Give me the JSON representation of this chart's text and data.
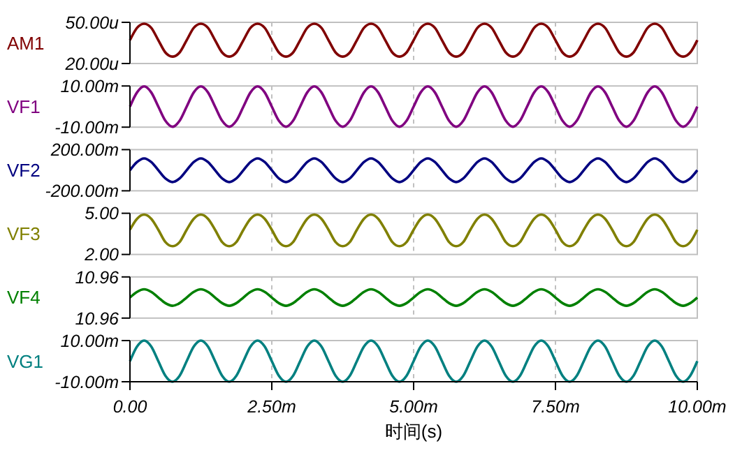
{
  "chart_data": [
    {
      "type": "line",
      "ylabel": "AM1",
      "x": [
        0,
        0.125,
        0.25,
        0.375,
        0.5,
        0.625,
        0.75,
        0.875,
        1,
        1.125,
        1.25,
        1.375,
        1.5,
        1.625,
        1.75,
        1.875,
        2,
        2.125,
        2.25,
        2.375,
        2.5,
        2.625,
        2.75,
        2.875,
        3,
        3.125,
        3.25,
        3.375,
        3.5,
        3.625,
        3.75,
        3.875,
        4,
        4.125,
        4.25,
        4.375,
        4.5,
        4.625,
        4.75,
        4.875,
        5,
        5.125,
        5.25,
        5.375,
        5.5,
        5.625,
        5.75,
        5.875,
        6,
        6.125,
        6.25,
        6.375,
        6.5,
        6.625,
        6.75,
        6.875,
        7,
        7.125,
        7.25,
        7.375,
        7.5,
        7.625,
        7.75,
        7.875,
        8,
        8.125,
        8.25,
        8.375,
        8.5,
        8.625,
        8.75,
        8.875,
        9,
        9.125,
        9.25,
        9.375,
        9.5,
        9.625,
        9.75,
        9.875,
        10
      ],
      "series": [
        {
          "color": "#800000",
          "values": [
            37,
            46,
            49,
            46,
            37,
            28,
            25,
            28,
            37,
            46,
            49,
            46,
            37,
            28,
            25,
            28,
            37,
            46,
            49,
            46,
            37,
            28,
            25,
            28,
            37,
            46,
            49,
            46,
            37,
            28,
            25,
            28,
            37,
            46,
            49,
            46,
            37,
            28,
            25,
            28,
            37,
            46,
            49,
            46,
            37,
            28,
            25,
            28,
            37,
            46,
            49,
            46,
            37,
            28,
            25,
            28,
            37,
            46,
            49,
            46,
            37,
            28,
            25,
            28,
            37,
            46,
            49,
            46,
            37,
            28,
            25,
            28,
            37,
            46,
            49,
            46,
            37,
            28,
            25,
            28,
            37
          ]
        }
      ],
      "xlim": [
        0,
        10
      ],
      "xticks": [
        0,
        2.5,
        5,
        7.5,
        10
      ],
      "ylim": [
        20,
        50
      ],
      "yticks": [
        {
          "value": 20,
          "label": "20.00u"
        },
        {
          "value": 50,
          "label": "50.00u"
        }
      ],
      "grid": "x",
      "tick_labels": "y"
    },
    {
      "type": "line",
      "ylabel": "VF1",
      "x": [
        0,
        0.125,
        0.25,
        0.375,
        0.5,
        0.625,
        0.75,
        0.875,
        1,
        1.125,
        1.25,
        1.375,
        1.5,
        1.625,
        1.75,
        1.875,
        2,
        2.125,
        2.25,
        2.375,
        2.5,
        2.625,
        2.75,
        2.875,
        3,
        3.125,
        3.25,
        3.375,
        3.5,
        3.625,
        3.75,
        3.875,
        4,
        4.125,
        4.25,
        4.375,
        4.5,
        4.625,
        4.75,
        4.875,
        5,
        5.125,
        5.25,
        5.375,
        5.5,
        5.625,
        5.75,
        5.875,
        6,
        6.125,
        6.25,
        6.375,
        6.5,
        6.625,
        6.75,
        6.875,
        7,
        7.125,
        7.25,
        7.375,
        7.5,
        7.625,
        7.75,
        7.875,
        8,
        8.125,
        8.25,
        8.375,
        8.5,
        8.625,
        8.75,
        8.875,
        9,
        9.125,
        9.25,
        9.375,
        9.5,
        9.625,
        9.75,
        9.875,
        10
      ],
      "series": [
        {
          "color": "#800080",
          "values": [
            0,
            6.9,
            9.8,
            6.9,
            0,
            -6.9,
            -9.8,
            -6.9,
            0,
            6.9,
            9.8,
            6.9,
            0,
            -6.9,
            -9.8,
            -6.9,
            0,
            6.9,
            9.8,
            6.9,
            0,
            -6.9,
            -9.8,
            -6.9,
            0,
            6.9,
            9.8,
            6.9,
            0,
            -6.9,
            -9.8,
            -6.9,
            0,
            6.9,
            9.8,
            6.9,
            0,
            -6.9,
            -9.8,
            -6.9,
            0,
            6.9,
            9.8,
            6.9,
            0,
            -6.9,
            -9.8,
            -6.9,
            0,
            6.9,
            9.8,
            6.9,
            0,
            -6.9,
            -9.8,
            -6.9,
            0,
            6.9,
            9.8,
            6.9,
            0,
            -6.9,
            -9.8,
            -6.9,
            0,
            6.9,
            9.8,
            6.9,
            0,
            -6.9,
            -9.8,
            -6.9,
            0,
            6.9,
            9.8,
            6.9,
            0,
            -6.9,
            -9.8,
            -6.9,
            0
          ]
        }
      ],
      "xlim": [
        0,
        10
      ],
      "xticks": [
        0,
        2.5,
        5,
        7.5,
        10
      ],
      "ylim": [
        -10,
        10
      ],
      "yticks": [
        {
          "value": -10,
          "label": "-10.00m"
        },
        {
          "value": 10,
          "label": "10.00m"
        }
      ],
      "grid": "x",
      "tick_labels": "y"
    },
    {
      "type": "line",
      "ylabel": "VF2",
      "x": [
        0,
        0.125,
        0.25,
        0.375,
        0.5,
        0.625,
        0.75,
        0.875,
        1,
        1.125,
        1.25,
        1.375,
        1.5,
        1.625,
        1.75,
        1.875,
        2,
        2.125,
        2.25,
        2.375,
        2.5,
        2.625,
        2.75,
        2.875,
        3,
        3.125,
        3.25,
        3.375,
        3.5,
        3.625,
        3.75,
        3.875,
        4,
        4.125,
        4.25,
        4.375,
        4.5,
        4.625,
        4.75,
        4.875,
        5,
        5.125,
        5.25,
        5.375,
        5.5,
        5.625,
        5.75,
        5.875,
        6,
        6.125,
        6.25,
        6.375,
        6.5,
        6.625,
        6.75,
        6.875,
        7,
        7.125,
        7.25,
        7.375,
        7.5,
        7.625,
        7.75,
        7.875,
        8,
        8.125,
        8.25,
        8.375,
        8.5,
        8.625,
        8.75,
        8.875,
        9,
        9.125,
        9.25,
        9.375,
        9.5,
        9.625,
        9.75,
        9.875,
        10
      ],
      "series": [
        {
          "color": "#000080",
          "values": [
            0,
            80,
            115,
            80,
            0,
            -80,
            -115,
            -80,
            0,
            80,
            115,
            80,
            0,
            -80,
            -115,
            -80,
            0,
            80,
            115,
            80,
            0,
            -80,
            -115,
            -80,
            0,
            80,
            115,
            80,
            0,
            -80,
            -115,
            -80,
            0,
            80,
            115,
            80,
            0,
            -80,
            -115,
            -80,
            0,
            80,
            115,
            80,
            0,
            -80,
            -115,
            -80,
            0,
            80,
            115,
            80,
            0,
            -80,
            -115,
            -80,
            0,
            80,
            115,
            80,
            0,
            -80,
            -115,
            -80,
            0,
            80,
            115,
            80,
            0,
            -80,
            -115,
            -80,
            0,
            80,
            115,
            80,
            0,
            -80,
            -115,
            -80,
            0
          ]
        }
      ],
      "xlim": [
        0,
        10
      ],
      "xticks": [
        0,
        2.5,
        5,
        7.5,
        10
      ],
      "ylim": [
        -200,
        200
      ],
      "yticks": [
        {
          "value": -200,
          "label": "-200.00m"
        },
        {
          "value": 200,
          "label": "200.00m"
        }
      ],
      "grid": "x",
      "tick_labels": "y"
    },
    {
      "type": "line",
      "ylabel": "VF3",
      "x": [
        0,
        0.125,
        0.25,
        0.375,
        0.5,
        0.625,
        0.75,
        0.875,
        1,
        1.125,
        1.25,
        1.375,
        1.5,
        1.625,
        1.75,
        1.875,
        2,
        2.125,
        2.25,
        2.375,
        2.5,
        2.625,
        2.75,
        2.875,
        3,
        3.125,
        3.25,
        3.375,
        3.5,
        3.625,
        3.75,
        3.875,
        4,
        4.125,
        4.25,
        4.375,
        4.5,
        4.625,
        4.75,
        4.875,
        5,
        5.125,
        5.25,
        5.375,
        5.5,
        5.625,
        5.75,
        5.875,
        6,
        6.125,
        6.25,
        6.375,
        6.5,
        6.625,
        6.75,
        6.875,
        7,
        7.125,
        7.25,
        7.375,
        7.5,
        7.625,
        7.75,
        7.875,
        8,
        8.125,
        8.25,
        8.375,
        8.5,
        8.625,
        8.75,
        8.875,
        9,
        9.125,
        9.25,
        9.375,
        9.5,
        9.625,
        9.75,
        9.875,
        10
      ],
      "series": [
        {
          "color": "#808000",
          "values": [
            3.8,
            4.6,
            4.9,
            4.6,
            3.8,
            2.9,
            2.6,
            2.9,
            3.8,
            4.6,
            4.9,
            4.6,
            3.8,
            2.9,
            2.6,
            2.9,
            3.8,
            4.6,
            4.9,
            4.6,
            3.8,
            2.9,
            2.6,
            2.9,
            3.8,
            4.6,
            4.9,
            4.6,
            3.8,
            2.9,
            2.6,
            2.9,
            3.8,
            4.6,
            4.9,
            4.6,
            3.8,
            2.9,
            2.6,
            2.9,
            3.8,
            4.6,
            4.9,
            4.6,
            3.8,
            2.9,
            2.6,
            2.9,
            3.8,
            4.6,
            4.9,
            4.6,
            3.8,
            2.9,
            2.6,
            2.9,
            3.8,
            4.6,
            4.9,
            4.6,
            3.8,
            2.9,
            2.6,
            2.9,
            3.8,
            4.6,
            4.9,
            4.6,
            3.8,
            2.9,
            2.6,
            2.9,
            3.8,
            4.6,
            4.9,
            4.6,
            3.8,
            2.9,
            2.6,
            2.9,
            3.8
          ]
        }
      ],
      "xlim": [
        0,
        10
      ],
      "xticks": [
        0,
        2.5,
        5,
        7.5,
        10
      ],
      "ylim": [
        2,
        5
      ],
      "yticks": [
        {
          "value": 2,
          "label": "2.00"
        },
        {
          "value": 5,
          "label": "5.00"
        }
      ],
      "grid": "x",
      "tick_labels": "y"
    },
    {
      "type": "line",
      "ylabel": "VF4",
      "x": [
        0,
        0.125,
        0.25,
        0.375,
        0.5,
        0.625,
        0.75,
        0.875,
        1,
        1.125,
        1.25,
        1.375,
        1.5,
        1.625,
        1.75,
        1.875,
        2,
        2.125,
        2.25,
        2.375,
        2.5,
        2.625,
        2.75,
        2.875,
        3,
        3.125,
        3.25,
        3.375,
        3.5,
        3.625,
        3.75,
        3.875,
        4,
        4.125,
        4.25,
        4.375,
        4.5,
        4.625,
        4.75,
        4.875,
        5,
        5.125,
        5.25,
        5.375,
        5.5,
        5.625,
        5.75,
        5.875,
        6,
        6.125,
        6.25,
        6.375,
        6.5,
        6.625,
        6.75,
        6.875,
        7,
        7.125,
        7.25,
        7.375,
        7.5,
        7.625,
        7.75,
        7.875,
        8,
        8.125,
        8.25,
        8.375,
        8.5,
        8.625,
        8.75,
        8.875,
        9,
        9.125,
        9.25,
        9.375,
        9.5,
        9.625,
        9.75,
        9.875,
        10
      ],
      "series": [
        {
          "color": "#008000",
          "values": [
            10.96,
            10.9611,
            10.9616,
            10.9611,
            10.96,
            10.9589,
            10.9584,
            10.9589,
            10.96,
            10.9611,
            10.9616,
            10.9611,
            10.96,
            10.9589,
            10.9584,
            10.9589,
            10.96,
            10.9611,
            10.9616,
            10.9611,
            10.96,
            10.9589,
            10.9584,
            10.9589,
            10.96,
            10.9611,
            10.9616,
            10.9611,
            10.96,
            10.9589,
            10.9584,
            10.9589,
            10.96,
            10.9611,
            10.9616,
            10.9611,
            10.96,
            10.9589,
            10.9584,
            10.9589,
            10.96,
            10.9611,
            10.9616,
            10.9611,
            10.96,
            10.9589,
            10.9584,
            10.9589,
            10.96,
            10.9611,
            10.9616,
            10.9611,
            10.96,
            10.9589,
            10.9584,
            10.9589,
            10.96,
            10.9611,
            10.9616,
            10.9611,
            10.96,
            10.9589,
            10.9584,
            10.9589,
            10.96,
            10.9611,
            10.9616,
            10.9611,
            10.96,
            10.9589,
            10.9584,
            10.9589,
            10.96,
            10.9611,
            10.9616,
            10.9611,
            10.96,
            10.9589,
            10.9584,
            10.9589,
            10.96
          ]
        }
      ],
      "xlim": [
        0,
        10
      ],
      "xticks": [
        0,
        2.5,
        5,
        7.5,
        10
      ],
      "ylim": [
        10.956,
        10.964
      ],
      "yticks": [
        {
          "value": 10.956,
          "label": "10.96"
        },
        {
          "value": 10.964,
          "label": "10.96"
        }
      ],
      "grid": "x",
      "tick_labels": "y"
    },
    {
      "type": "line",
      "ylabel": "VG1",
      "xlabel": "时间(s)",
      "x": [
        0,
        0.125,
        0.25,
        0.375,
        0.5,
        0.625,
        0.75,
        0.875,
        1,
        1.125,
        1.25,
        1.375,
        1.5,
        1.625,
        1.75,
        1.875,
        2,
        2.125,
        2.25,
        2.375,
        2.5,
        2.625,
        2.75,
        2.875,
        3,
        3.125,
        3.25,
        3.375,
        3.5,
        3.625,
        3.75,
        3.875,
        4,
        4.125,
        4.25,
        4.375,
        4.5,
        4.625,
        4.75,
        4.875,
        5,
        5.125,
        5.25,
        5.375,
        5.5,
        5.625,
        5.75,
        5.875,
        6,
        6.125,
        6.25,
        6.375,
        6.5,
        6.625,
        6.75,
        6.875,
        7,
        7.125,
        7.25,
        7.375,
        7.5,
        7.625,
        7.75,
        7.875,
        8,
        8.125,
        8.25,
        8.375,
        8.5,
        8.625,
        8.75,
        8.875,
        9,
        9.125,
        9.25,
        9.375,
        9.5,
        9.625,
        9.75,
        9.875,
        10
      ],
      "series": [
        {
          "color": "#008080",
          "values": [
            0,
            7.1,
            10,
            7.1,
            0,
            -7.1,
            -10,
            -7.1,
            0,
            7.1,
            10,
            7.1,
            0,
            -7.1,
            -10,
            -7.1,
            0,
            7.1,
            10,
            7.1,
            0,
            -7.1,
            -10,
            -7.1,
            0,
            7.1,
            10,
            7.1,
            0,
            -7.1,
            -10,
            -7.1,
            0,
            7.1,
            10,
            7.1,
            0,
            -7.1,
            -10,
            -7.1,
            0,
            7.1,
            10,
            7.1,
            0,
            -7.1,
            -10,
            -7.1,
            0,
            7.1,
            10,
            7.1,
            0,
            -7.1,
            -10,
            -7.1,
            0,
            7.1,
            10,
            7.1,
            0,
            -7.1,
            -10,
            -7.1,
            0,
            7.1,
            10,
            7.1,
            0,
            -7.1,
            -10,
            -7.1,
            0,
            7.1,
            10,
            7.1,
            0,
            -7.1,
            -10,
            -7.1,
            0
          ]
        }
      ],
      "xlim": [
        0,
        10
      ],
      "xticks": [
        {
          "value": 0,
          "label": "0.00"
        },
        {
          "value": 2.5,
          "label": "2.50m"
        },
        {
          "value": 5,
          "label": "5.00m"
        },
        {
          "value": 7.5,
          "label": "7.50m"
        },
        {
          "value": 10,
          "label": "10.00m"
        }
      ],
      "ylim": [
        -10,
        10
      ],
      "yticks": [
        {
          "value": -10,
          "label": "-10.00m"
        },
        {
          "value": 10,
          "label": "10.00m"
        }
      ],
      "grid": "x"
    }
  ]
}
